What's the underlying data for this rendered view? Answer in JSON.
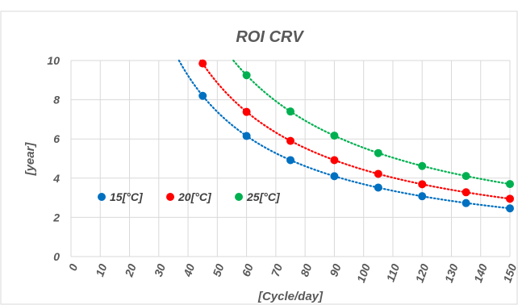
{
  "chart_data": {
    "type": "scatter",
    "title": "ROI CRV",
    "xlabel": "[Cycle/day]",
    "ylabel": "[year]",
    "xlim": [
      0,
      150
    ],
    "ylim": [
      0,
      10
    ],
    "x_ticks": [
      "0",
      "10",
      "20",
      "30",
      "40",
      "50",
      "60",
      "70",
      "80",
      "90",
      "100",
      "110",
      "120",
      "130",
      "140",
      "150"
    ],
    "y_ticks": [
      "0",
      "2",
      "4",
      "6",
      "8",
      "10"
    ],
    "grid": true,
    "legend_position": "left-inside",
    "trendline": "power, dotted",
    "series": [
      {
        "name": "15[°C]",
        "color": "#0070C0",
        "x": [
          45,
          60,
          75,
          90,
          105,
          120,
          135,
          150
        ],
        "y": [
          8.2,
          6.15,
          4.92,
          4.1,
          3.52,
          3.08,
          2.73,
          2.46
        ]
      },
      {
        "name": "20[°C]",
        "color": "#FF0000",
        "x": [
          45,
          60,
          75,
          90,
          105,
          120,
          135,
          150
        ],
        "y": [
          9.85,
          7.38,
          5.9,
          4.92,
          4.22,
          3.69,
          3.28,
          2.95
        ]
      },
      {
        "name": "25[°C]",
        "color": "#00B050",
        "x": [
          60,
          75,
          90,
          105,
          120,
          135,
          150
        ],
        "y": [
          9.25,
          7.4,
          6.17,
          5.28,
          4.62,
          4.11,
          3.7
        ]
      }
    ]
  }
}
